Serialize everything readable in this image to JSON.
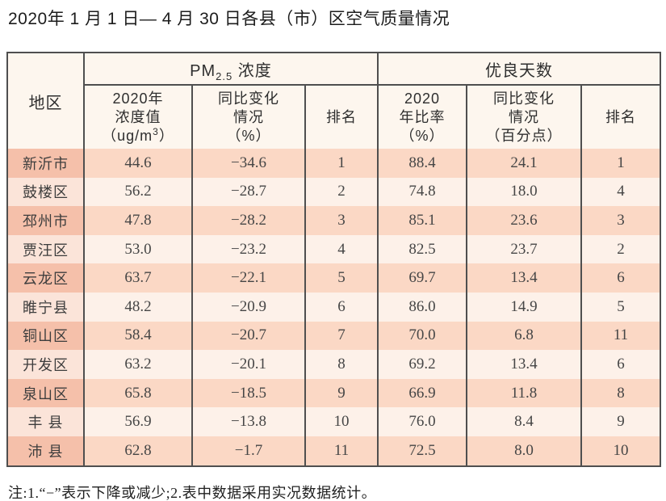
{
  "page": {
    "title": "2020年 1 月 1 日— 4 月 30 日各县（市）区空气质量情况",
    "note": "注:1.“−”表示下降或减少;2.表中数据采用实况数据统计。"
  },
  "table": {
    "corner_header": "地区",
    "pm_group": {
      "prefix": "PM",
      "sub": "2.5",
      "suffix": " 浓度"
    },
    "good_group": "优良天数",
    "sub_headers": {
      "conc": {
        "line1": "2020年",
        "line2": "浓度值",
        "line3_pre": "（ug/m",
        "line3_sup": "3",
        "line3_post": "）"
      },
      "pm_change": {
        "line1": "同比变化",
        "line2": "情况",
        "line3": "（%）"
      },
      "pm_rank": "排名",
      "ratio": {
        "line1": "2020",
        "line2": "年比率",
        "line3": "（%）"
      },
      "good_change": {
        "line1": "同比变化",
        "line2": "情况",
        "line3": "（百分点）"
      },
      "good_rank": "排名"
    },
    "rows": [
      {
        "region": "新沂市",
        "pm_value": "44.6",
        "pm_change": "−34.6",
        "pm_rank": "1",
        "good_ratio": "88.4",
        "good_change": "24.1",
        "good_rank": "1"
      },
      {
        "region": "鼓楼区",
        "pm_value": "56.2",
        "pm_change": "−28.7",
        "pm_rank": "2",
        "good_ratio": "74.8",
        "good_change": "18.0",
        "good_rank": "4"
      },
      {
        "region": "邳州市",
        "pm_value": "47.8",
        "pm_change": "−28.2",
        "pm_rank": "3",
        "good_ratio": "85.1",
        "good_change": "23.6",
        "good_rank": "3"
      },
      {
        "region": "贾汪区",
        "pm_value": "53.0",
        "pm_change": "−23.2",
        "pm_rank": "4",
        "good_ratio": "82.5",
        "good_change": "23.7",
        "good_rank": "2"
      },
      {
        "region": "云龙区",
        "pm_value": "63.7",
        "pm_change": "−22.1",
        "pm_rank": "5",
        "good_ratio": "69.7",
        "good_change": "13.4",
        "good_rank": "6"
      },
      {
        "region": "睢宁县",
        "pm_value": "48.2",
        "pm_change": "−20.9",
        "pm_rank": "6",
        "good_ratio": "86.0",
        "good_change": "14.9",
        "good_rank": "5"
      },
      {
        "region": "铜山区",
        "pm_value": "58.4",
        "pm_change": "−20.7",
        "pm_rank": "7",
        "good_ratio": "70.0",
        "good_change": "6.8",
        "good_rank": "11"
      },
      {
        "region": "开发区",
        "pm_value": "63.2",
        "pm_change": "−20.1",
        "pm_rank": "8",
        "good_ratio": "69.2",
        "good_change": "13.4",
        "good_rank": "6"
      },
      {
        "region": "泉山区",
        "pm_value": "65.8",
        "pm_change": "−18.5",
        "pm_rank": "9",
        "good_ratio": "66.9",
        "good_change": "11.8",
        "good_rank": "8"
      },
      {
        "region": "丰 县",
        "pm_value": "56.9",
        "pm_change": "−13.8",
        "pm_rank": "10",
        "good_ratio": "76.0",
        "good_change": "8.4",
        "good_rank": "9"
      },
      {
        "region": "沛 县",
        "pm_value": "62.8",
        "pm_change": "−1.7",
        "pm_rank": "11",
        "good_ratio": "72.5",
        "good_change": "8.0",
        "good_rank": "10"
      }
    ]
  },
  "colors": {
    "border": "#4f4f4f",
    "header_bg": "#fdf6ee",
    "row_odd_region": "#f5c0aa",
    "row_odd_data": "#fbd8c5",
    "row_even_region": "#fbe4d9",
    "row_even_data": "#fdf1e9"
  }
}
